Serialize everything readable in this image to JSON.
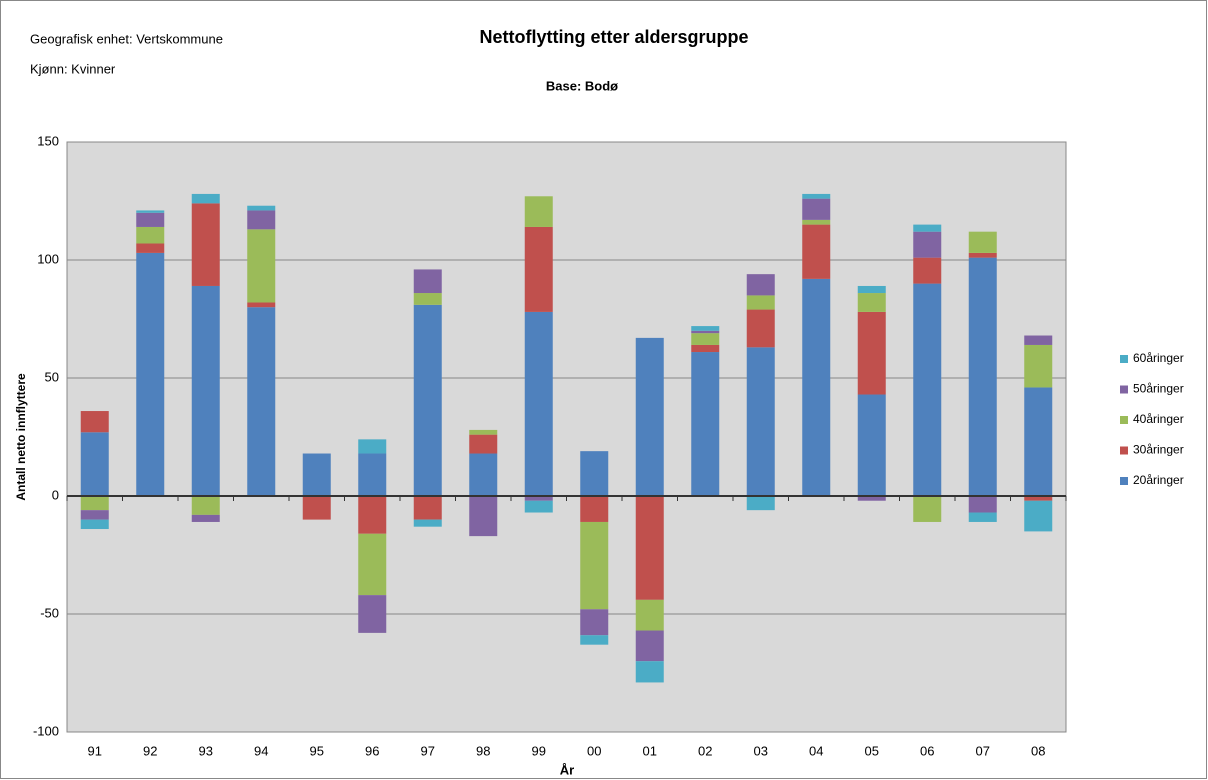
{
  "chart_data": {
    "type": "stacked-bar",
    "title": "Nettoflytting etter aldersgruppe",
    "subtitle": "Base: Bodø",
    "annotations": [
      "Geografisk enhet: Vertskommune",
      "Kjønn: Kvinner"
    ],
    "x_label": "År",
    "y_label": "Antall netto innflyttere",
    "categories": [
      "91",
      "92",
      "93",
      "94",
      "95",
      "96",
      "97",
      "98",
      "99",
      "00",
      "01",
      "02",
      "03",
      "04",
      "05",
      "06",
      "07",
      "08"
    ],
    "series": [
      {
        "name": "20åringer",
        "color": "#4f81bd",
        "values": [
          27,
          103,
          89,
          80,
          18,
          18,
          81,
          18,
          78,
          19,
          67,
          61,
          63,
          92,
          43,
          90,
          101,
          46
        ]
      },
      {
        "name": "30åringer",
        "color": "#c0504d",
        "values": [
          9,
          4,
          35,
          2,
          -10,
          -16,
          -10,
          8,
          36,
          -11,
          -44,
          3,
          16,
          23,
          35,
          11,
          2,
          -2
        ]
      },
      {
        "name": "40åringer",
        "color": "#9bbb59",
        "values": [
          -6,
          7,
          -8,
          31,
          0,
          -26,
          5,
          2,
          13,
          -37,
          -13,
          5,
          6,
          2,
          8,
          -11,
          9,
          18
        ]
      },
      {
        "name": "50åringer",
        "color": "#8064a2",
        "values": [
          -4,
          6,
          -3,
          8,
          0,
          -16,
          10,
          -17,
          -2,
          -11,
          -13,
          1,
          9,
          9,
          -2,
          11,
          -7,
          4
        ]
      },
      {
        "name": "60åringer",
        "color": "#4bacc6",
        "values": [
          -4,
          1,
          4,
          2,
          0,
          6,
          -3,
          0,
          -5,
          -4,
          -9,
          2,
          -6,
          2,
          3,
          3,
          -4,
          -13
        ]
      }
    ],
    "ylim": [
      -100,
      150
    ],
    "yticks": [
      -100,
      -50,
      0,
      50,
      100,
      150
    ],
    "grid": true,
    "legend": "right"
  }
}
